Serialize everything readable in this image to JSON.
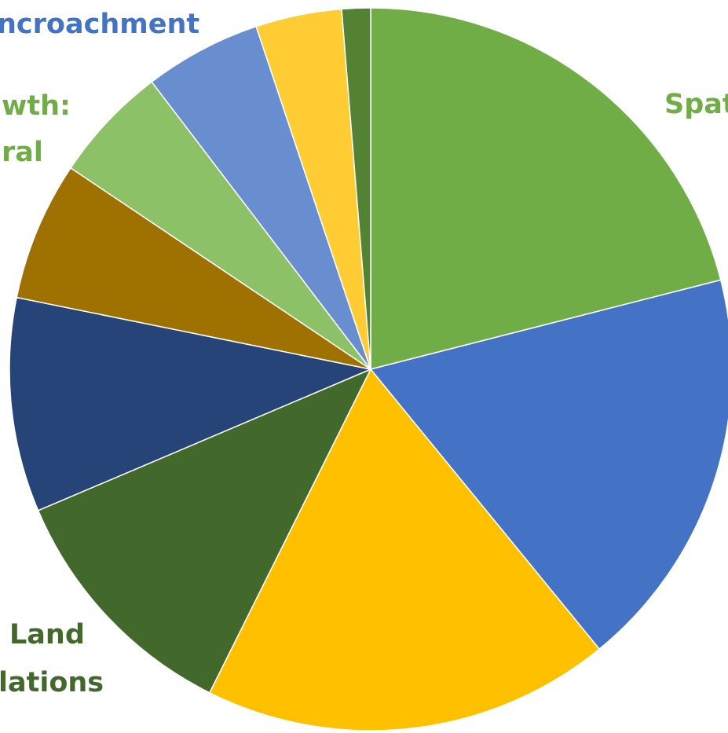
{
  "chart_data": {
    "type": "pie",
    "slices": [
      {
        "value": 21.3,
        "color": "#70AD47"
      },
      {
        "value": 18.3,
        "color": "#4472C4"
      },
      {
        "value": 18.5,
        "color": "#FFC000"
      },
      {
        "value": 11.4,
        "color": "#43682B"
      },
      {
        "value": 9.7,
        "color": "#264478"
      },
      {
        "value": 6.3,
        "color": "#9E7100"
      },
      {
        "value": 5.3,
        "color": "#8CC168"
      },
      {
        "value": 5.3,
        "color": "#698ED0"
      },
      {
        "value": 3.9,
        "color": "#FFCD33"
      },
      {
        "value": 1.3,
        "color": "#548235"
      }
    ],
    "labels": [
      {
        "text": "ncroachment",
        "color": "#4472C4"
      },
      {
        "text": "wth:",
        "color": "#70AD47"
      },
      {
        "text": "ral",
        "color": "#70AD47"
      },
      {
        "text": "Spat",
        "color": "#70AD47"
      },
      {
        "text": "Land",
        "color": "#43682B"
      },
      {
        "text": "lations",
        "color": "#43682B"
      }
    ]
  }
}
